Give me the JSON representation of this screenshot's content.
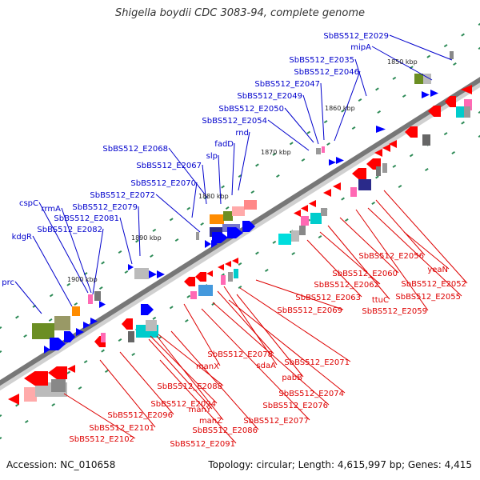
{
  "title": "Shigella boydii CDC 3083-94, complete genome",
  "footer": {
    "accession": "Accession: NC_010658",
    "summary": "Topology: circular; Length: 4,615,997 bp; Genes: 4,415"
  },
  "colors": {
    "backbone": "#777777",
    "forward_label": "#0000cc",
    "reverse_label": "#dd0000",
    "tick_mark": "#2e8b57",
    "forward_feature": "#0000ff",
    "reverse_feature": "#ff0000"
  },
  "ruler": [
    "1850 kbp",
    "1860 kbp",
    "1870 kbp",
    "1880 kbp",
    "1890 kbp",
    "1900 kbp"
  ],
  "forward_genes": [
    "SbBS512_E2029",
    "mipA",
    "SbBS512_E2035",
    "SbBS512_E2046",
    "SbBS512_E2047",
    "SbBS512_E2049",
    "SbBS512_E2050",
    "SbBS512_E2054",
    "rnd",
    "fadD",
    "slp",
    "SbBS512_E2068",
    "SbBS512_E2067",
    "SbBS512_E2070",
    "SbBS512_E2072",
    "SbBS512_E2079",
    "cspC",
    "rrmA",
    "SbBS512_E2081",
    "SbBS512_E2082",
    "kdgR",
    "prc"
  ],
  "reverse_genes": [
    "SbBS512_E2056",
    "yeaN",
    "SbBS512_E2060",
    "SbBS512_E2052",
    "SbBS512_E2062",
    "SbBS512_E2055",
    "SbBS512_E2063",
    "ttuC",
    "SbBS512_E2059",
    "SbBS512_E2069",
    "SbBS512_E2071",
    "SbBS512_E2078",
    "sdaA",
    "manX",
    "pabB",
    "SbBS512_E2074",
    "SbBS512_E2088",
    "SbBS512_E2076",
    "SbBS512_E2094",
    "manY",
    "SbBS512_E2096",
    "manZ",
    "SbBS512_E2077",
    "SbBS512_E2101",
    "SbBS512_E2086",
    "SbBS512_E2102",
    "SbBS512_E2091"
  ]
}
